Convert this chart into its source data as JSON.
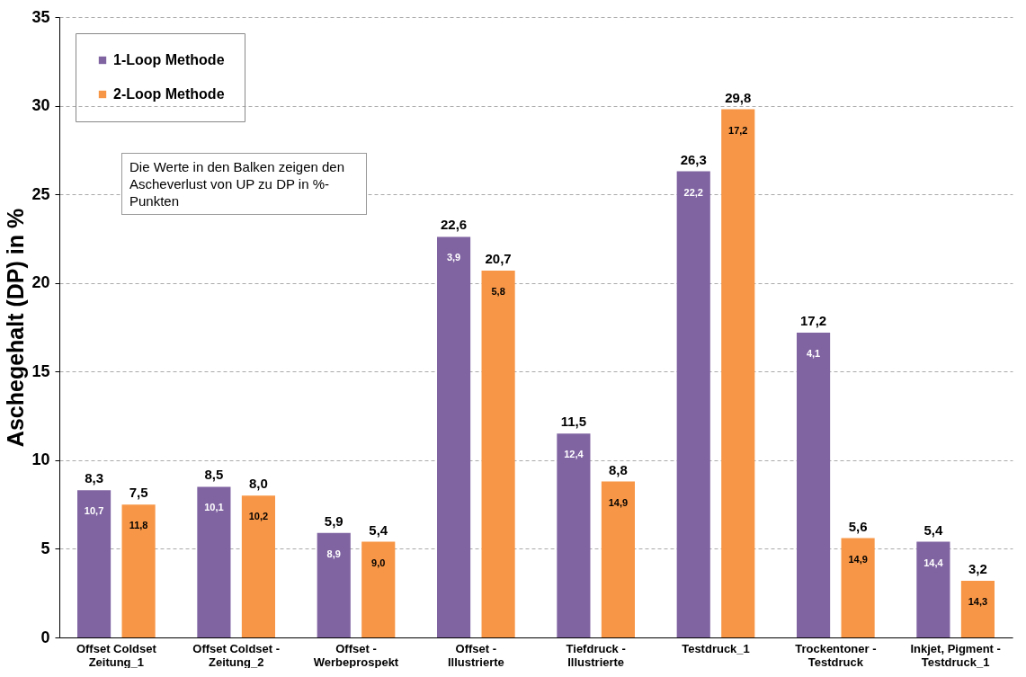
{
  "chart_data": {
    "type": "bar",
    "ylabel": "Aschegehalt (DP) in %",
    "categories": [
      "Offset Coldset\nZeitung_1",
      "Offset Coldset -\nZeitung_2",
      "Offset -\nWerbeprospekt",
      "Offset -\nIllustrierte",
      "Tiefdruck -\nIllustrierte",
      "Testdruck_1",
      "Trockentoner -\nTestdruck",
      "Inkjet, Pigment -\nTestdruck_1"
    ],
    "series": [
      {
        "name": "1-Loop Methode",
        "color": "#8064a2",
        "values": [
          8.3,
          8.5,
          5.9,
          22.6,
          11.5,
          26.3,
          17.2,
          5.4
        ],
        "value_labels": [
          "8,3",
          "8,5",
          "5,9",
          "22,6",
          "11,5",
          "26,3",
          "17,2",
          "5,4"
        ]
      },
      {
        "name": "2-Loop Methode",
        "color": "#f79646",
        "values": [
          7.5,
          8.0,
          5.4,
          20.7,
          8.8,
          29.8,
          5.6,
          3.2
        ],
        "value_labels": [
          "7,5",
          "8,0",
          "5,4",
          "20,7",
          "8,8",
          "29,8",
          "5,6",
          "3,2"
        ]
      }
    ],
    "ylim": [
      0,
      35
    ],
    "yticks": [
      0,
      5,
      10,
      15,
      20,
      25,
      30,
      35
    ],
    "grid": "y",
    "legend": "top left",
    "annotations": [
      "Die Werte in den Balken zeigen den Ascheverlust von UP zu DP in %-Punkten",
      "10,7",
      "11,8",
      "10,1",
      "10,2",
      "8,9",
      "9,0",
      "3,9",
      "5,8",
      "12,4",
      "14,9",
      "22,2",
      "17,2",
      "4,1",
      "14,9",
      "14,4",
      "14,3"
    ]
  }
}
